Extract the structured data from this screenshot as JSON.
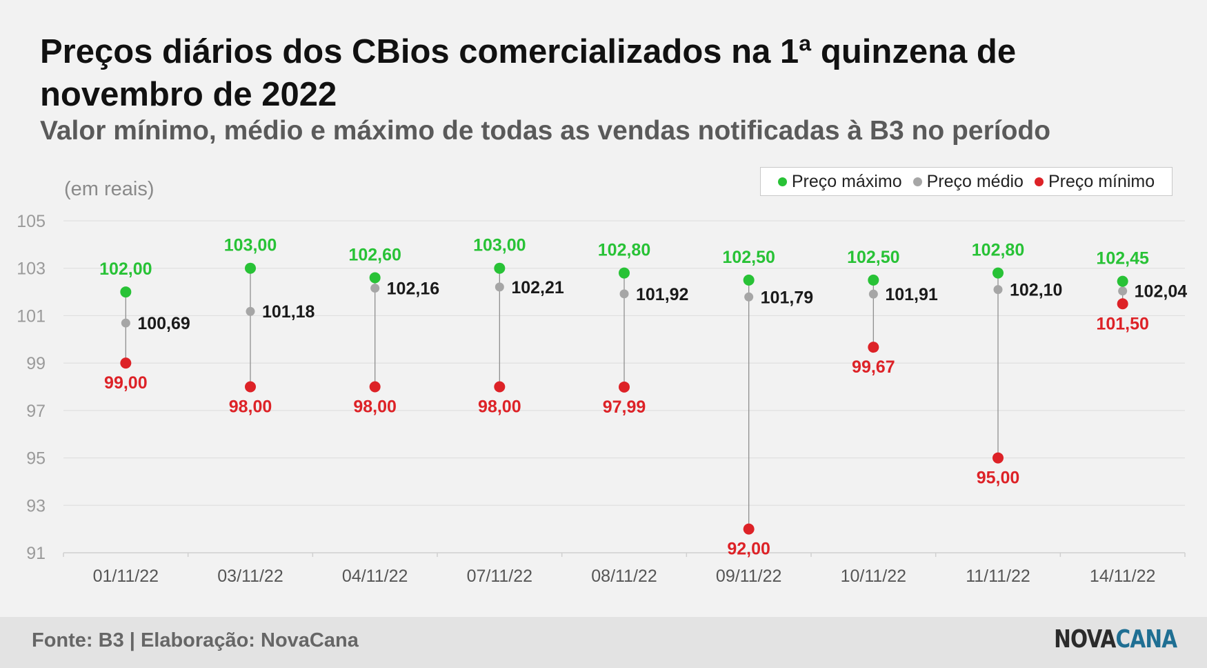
{
  "title": "Preços diários dos CBios comercializados na 1ª quinzena de novembro de 2022",
  "subtitle": "Valor mínimo, médio e máximo de todas as vendas notificadas à B3 no período",
  "unit_label": "(em reais)",
  "legend": [
    {
      "label": "Preço máximo",
      "color": "#28c236"
    },
    {
      "label": "Preço médio",
      "color": "#a6a6a6"
    },
    {
      "label": "Preço mínimo",
      "color": "#dd2227"
    }
  ],
  "footer": {
    "source": "Fonte: B3 | Elaboração: NovaCana",
    "logo_part1": "NOVA",
    "logo_part2": "CANA"
  },
  "chart_data": {
    "type": "scatter",
    "categories": [
      "01/11/22",
      "03/11/22",
      "04/11/22",
      "07/11/22",
      "08/11/22",
      "09/11/22",
      "10/11/22",
      "11/11/22",
      "14/11/22"
    ],
    "series": [
      {
        "name": "Preço máximo",
        "values": [
          102.0,
          103.0,
          102.6,
          103.0,
          102.8,
          102.5,
          102.5,
          102.8,
          102.45
        ],
        "labels": [
          "102,00",
          "103,00",
          "102,60",
          "103,00",
          "102,80",
          "102,50",
          "102,50",
          "102,80",
          "102,45"
        ]
      },
      {
        "name": "Preço médio",
        "values": [
          100.69,
          101.18,
          102.16,
          102.21,
          101.92,
          101.79,
          101.91,
          102.1,
          102.04
        ],
        "labels": [
          "100,69",
          "101,18",
          "102,16",
          "102,21",
          "101,92",
          "101,79",
          "101,91",
          "102,10",
          "102,04"
        ]
      },
      {
        "name": "Preço mínimo",
        "values": [
          99.0,
          98.0,
          98.0,
          98.0,
          97.99,
          92.0,
          99.67,
          95.0,
          101.5
        ],
        "labels": [
          "99,00",
          "98,00",
          "98,00",
          "98,00",
          "97,99",
          "92,00",
          "99,67",
          "95,00",
          "101,50"
        ]
      }
    ],
    "ylim": [
      91,
      105
    ],
    "yticks": [
      91,
      93,
      95,
      97,
      99,
      101,
      103,
      105
    ],
    "grid": true,
    "legend_position": "top-right"
  }
}
